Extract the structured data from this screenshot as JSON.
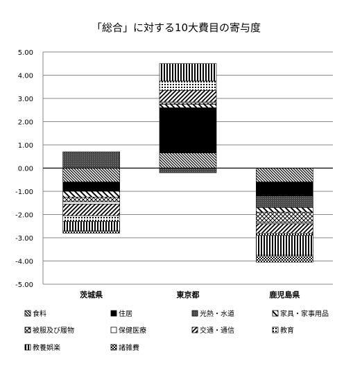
{
  "chart_data": {
    "type": "bar",
    "stacked": true,
    "title": "「総合」に対する10大費目の寄与度",
    "xlabel": "",
    "ylabel": "",
    "ylim": [
      -5.0,
      5.0
    ],
    "yticks": [
      "5.00",
      "4.00",
      "3.00",
      "2.00",
      "1.00",
      "0.00",
      "-1.00",
      "-2.00",
      "-3.00",
      "-4.00",
      "-5.00"
    ],
    "grid": true,
    "legend_position": "bottom",
    "categories": [
      "茨城県",
      "東京都",
      "鹿児島県"
    ],
    "series": [
      {
        "name": "食料",
        "pattern": "diag-dense",
        "values": [
          -0.6,
          0.65,
          -0.6
        ]
      },
      {
        "name": "住居",
        "pattern": "solid-black",
        "values": [
          -0.4,
          1.95,
          -0.6
        ]
      },
      {
        "name": "光熱・水道",
        "pattern": "dark-dots",
        "values": [
          0.7,
          -0.2,
          -0.5
        ]
      },
      {
        "name": "家具・家事用品",
        "pattern": "diag-wide",
        "values": [
          -0.25,
          0.15,
          -0.2
        ]
      },
      {
        "name": "被服及び履物",
        "pattern": "crosshatch",
        "values": [
          -0.2,
          0.05,
          -0.45
        ]
      },
      {
        "name": "保健医療",
        "pattern": "white",
        "values": [
          -0.1,
          0.05,
          -0.05
        ]
      },
      {
        "name": "交通・通信",
        "pattern": "diag-medium",
        "values": [
          -0.5,
          0.5,
          -0.4
        ]
      },
      {
        "name": "教育",
        "pattern": "dot-grid",
        "values": [
          -0.25,
          0.4,
          -0.1
        ]
      },
      {
        "name": "教養娯楽",
        "pattern": "vertical",
        "values": [
          -0.4,
          0.75,
          -0.85
        ]
      },
      {
        "name": "諸雑費",
        "pattern": "checker",
        "values": [
          -0.1,
          0.0,
          -0.3
        ]
      }
    ]
  }
}
